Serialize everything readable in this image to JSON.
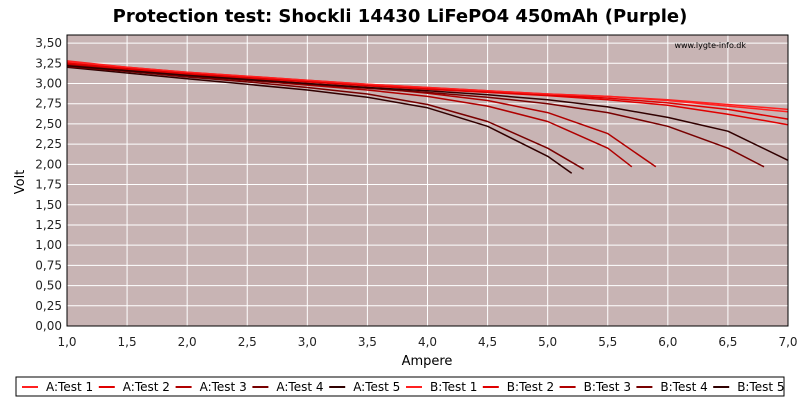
{
  "chart_data": {
    "type": "line",
    "title": "Protection test: Shockli 14430 LiFePO4 450mAh (Purple)",
    "xlabel": "Ampere",
    "ylabel": "Volt",
    "watermark": "www.lygte-info.dk",
    "xlim": [
      1.0,
      7.0
    ],
    "ylim": [
      0.0,
      3.6
    ],
    "x_ticks": [
      "1,0",
      "1,5",
      "2,0",
      "2,5",
      "3,0",
      "3,5",
      "4,0",
      "4,5",
      "5,0",
      "5,5",
      "6,0",
      "6,5",
      "7,0"
    ],
    "y_ticks": [
      "0,00",
      "0,25",
      "0,50",
      "0,75",
      "1,00",
      "1,25",
      "1,50",
      "1,75",
      "2,00",
      "2,25",
      "2,50",
      "2,75",
      "3,00",
      "3,25",
      "3,50"
    ],
    "grid": true,
    "legend_position": "bottom",
    "plot_background": "#c8b4b4",
    "series": [
      {
        "name": "A:Test 1",
        "color": "#ff2020",
        "x": [
          1.0,
          1.5,
          2.0,
          2.5,
          3.0,
          3.5,
          4.0,
          4.5,
          5.0,
          5.5,
          6.0,
          6.5,
          7.0
        ],
        "y": [
          3.28,
          3.2,
          3.14,
          3.09,
          3.04,
          2.99,
          2.95,
          2.91,
          2.87,
          2.84,
          2.8,
          2.74,
          2.68
        ]
      },
      {
        "name": "A:Test 2",
        "color": "#e00000",
        "x": [
          1.0,
          1.5,
          2.0,
          2.5,
          3.0,
          3.5,
          4.0,
          4.5,
          5.0,
          5.5,
          6.0,
          6.5,
          7.0
        ],
        "y": [
          3.26,
          3.19,
          3.13,
          3.08,
          3.03,
          2.98,
          2.94,
          2.9,
          2.86,
          2.82,
          2.76,
          2.68,
          2.56
        ]
      },
      {
        "name": "A:Test 3",
        "color": "#b00000",
        "x": [
          1.0,
          1.5,
          2.0,
          2.5,
          3.0,
          3.5,
          4.0,
          4.5,
          5.0,
          5.5,
          5.9
        ],
        "y": [
          3.24,
          3.17,
          3.11,
          3.06,
          3.0,
          2.95,
          2.88,
          2.79,
          2.64,
          2.38,
          1.97
        ]
      },
      {
        "name": "A:Test 4",
        "color": "#780000",
        "x": [
          1.0,
          1.5,
          2.0,
          2.5,
          3.0,
          3.5,
          4.0,
          4.5,
          5.0,
          5.3
        ],
        "y": [
          3.22,
          3.15,
          3.08,
          3.02,
          2.95,
          2.87,
          2.74,
          2.53,
          2.2,
          1.94
        ]
      },
      {
        "name": "A:Test 5",
        "color": "#300000",
        "x": [
          1.0,
          1.5,
          2.0,
          2.5,
          3.0,
          3.5,
          4.0,
          4.5,
          5.0,
          5.2
        ],
        "y": [
          3.2,
          3.13,
          3.06,
          2.99,
          2.92,
          2.83,
          2.7,
          2.47,
          2.1,
          1.89
        ]
      },
      {
        "name": "B:Test 1",
        "color": "#ff2020",
        "x": [
          1.0,
          1.5,
          2.0,
          2.5,
          3.0,
          3.5,
          4.0,
          4.5,
          5.0,
          5.5,
          6.0,
          6.5,
          7.0
        ],
        "y": [
          3.27,
          3.2,
          3.14,
          3.09,
          3.04,
          2.99,
          2.95,
          2.91,
          2.87,
          2.84,
          2.79,
          2.72,
          2.65
        ]
      },
      {
        "name": "B:Test 2",
        "color": "#e00000",
        "x": [
          1.0,
          1.5,
          2.0,
          2.5,
          3.0,
          3.5,
          4.0,
          4.5,
          5.0,
          5.5,
          6.0,
          6.5,
          7.0
        ],
        "y": [
          3.25,
          3.18,
          3.12,
          3.07,
          3.02,
          2.97,
          2.93,
          2.89,
          2.85,
          2.8,
          2.73,
          2.62,
          2.49
        ]
      },
      {
        "name": "B:Test 3",
        "color": "#b00000",
        "x": [
          1.0,
          1.5,
          2.0,
          2.5,
          3.0,
          3.5,
          4.0,
          4.5,
          5.0,
          5.5,
          5.7
        ],
        "y": [
          3.23,
          3.16,
          3.1,
          3.04,
          2.98,
          2.92,
          2.84,
          2.72,
          2.53,
          2.2,
          1.97
        ]
      },
      {
        "name": "B:Test 4",
        "color": "#780000",
        "x": [
          1.0,
          1.5,
          2.0,
          2.5,
          3.0,
          3.5,
          4.0,
          4.5,
          5.0,
          5.5,
          6.0,
          6.5,
          6.8
        ],
        "y": [
          3.21,
          3.15,
          3.09,
          3.04,
          2.99,
          2.94,
          2.89,
          2.83,
          2.75,
          2.64,
          2.47,
          2.2,
          1.97
        ]
      },
      {
        "name": "B:Test 5",
        "color": "#300000",
        "x": [
          1.0,
          1.5,
          2.0,
          2.5,
          3.0,
          3.5,
          4.0,
          4.5,
          5.0,
          5.5,
          6.0,
          6.5,
          7.0
        ],
        "y": [
          3.22,
          3.16,
          3.1,
          3.05,
          3.0,
          2.95,
          2.91,
          2.86,
          2.8,
          2.71,
          2.58,
          2.41,
          2.05
        ]
      }
    ]
  }
}
